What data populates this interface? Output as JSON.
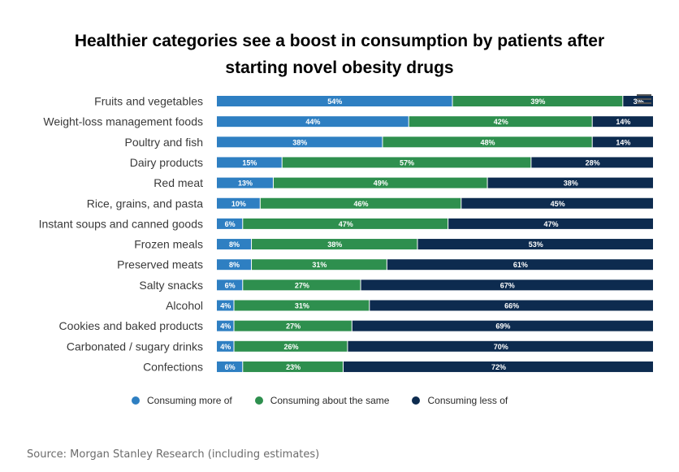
{
  "title_lines": [
    "Healthier categories see a boost in consumption by patients after",
    "starting novel obesity drugs"
  ],
  "source": "Source: Morgan Stanley Research (including estimates)",
  "colors": {
    "more": "#2e7fc2",
    "same": "#2e8f4e",
    "less": "#0d2b4f"
  },
  "chart_data": {
    "type": "bar",
    "orientation": "horizontal",
    "stacked": true,
    "categories": [
      "Fruits and vegetables",
      "Weight-loss management foods",
      "Poultry and fish",
      "Dairy products",
      "Red meat",
      "Rice, grains, and pasta",
      "Instant soups and canned goods",
      "Frozen meals",
      "Preserved meats",
      "Salty snacks",
      "Alcohol",
      "Cookies and baked products",
      "Carbonated / sugary drinks",
      "Confections"
    ],
    "series": [
      {
        "name": "Consuming more of",
        "values": [
          54,
          44,
          38,
          15,
          13,
          10,
          6,
          8,
          8,
          6,
          4,
          4,
          4,
          6
        ]
      },
      {
        "name": "Consuming about the same",
        "values": [
          39,
          42,
          48,
          57,
          49,
          46,
          47,
          38,
          31,
          27,
          31,
          27,
          26,
          23
        ]
      },
      {
        "name": "Consuming less of",
        "values": [
          3,
          14,
          14,
          28,
          38,
          45,
          47,
          53,
          61,
          67,
          66,
          69,
          70,
          72
        ]
      }
    ],
    "value_suffix": "%",
    "xlim": [
      0,
      100
    ],
    "legend_position": "bottom",
    "grid": false
  }
}
